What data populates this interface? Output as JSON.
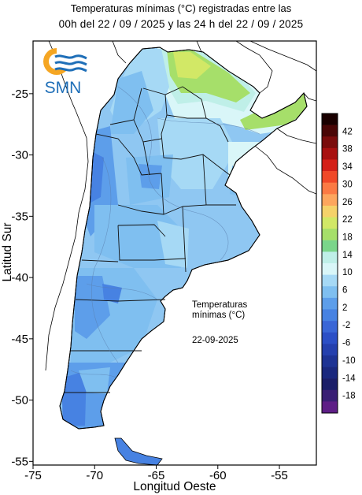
{
  "header": {
    "title_line1": "Temperaturas mínimas (°C) registradas entre las",
    "title_line2": "00h del 22 / 09 / 2025 y las 24 h del 22 / 09 / 2025"
  },
  "logo": {
    "text": "SMN",
    "icon": "smn-sun-waves-icon"
  },
  "map": {
    "xlabel": "Longitud Oeste",
    "ylabel": "Latitud Sur",
    "x_ticks": [
      "-75",
      "-70",
      "-65",
      "-60",
      "-55"
    ],
    "y_ticks": [
      "-25",
      "-30",
      "-35",
      "-40",
      "-45",
      "-50",
      "-55"
    ],
    "xlim": [
      -75,
      -52
    ],
    "ylim": [
      -55.3,
      -20.7
    ],
    "annotation_title": "Temperaturas mínimas (°C)",
    "annotation_date": "22-09-2025"
  },
  "legend": {
    "labels": [
      "42",
      "38",
      "34",
      "30",
      "26",
      "22",
      "18",
      "14",
      "10",
      "6",
      "2",
      "-2",
      "-6",
      "-10",
      "-14",
      "-18"
    ],
    "colors": [
      "#1a0000",
      "#4a0606",
      "#7a0c0c",
      "#a81010",
      "#d42018",
      "#f04828",
      "#fb7a44",
      "#fda65e",
      "#f5d26a",
      "#d2e866",
      "#a6df6a",
      "#7ad58a",
      "#bfefe8",
      "#d9f6f8",
      "#a6d9f5",
      "#7fbff0",
      "#5d9eea",
      "#4782e2",
      "#3a66d6",
      "#2c4fc6",
      "#2540ae",
      "#1e3394",
      "#1a287e",
      "#1b1e68",
      "#3a1f74",
      "#5e1e86"
    ]
  }
}
